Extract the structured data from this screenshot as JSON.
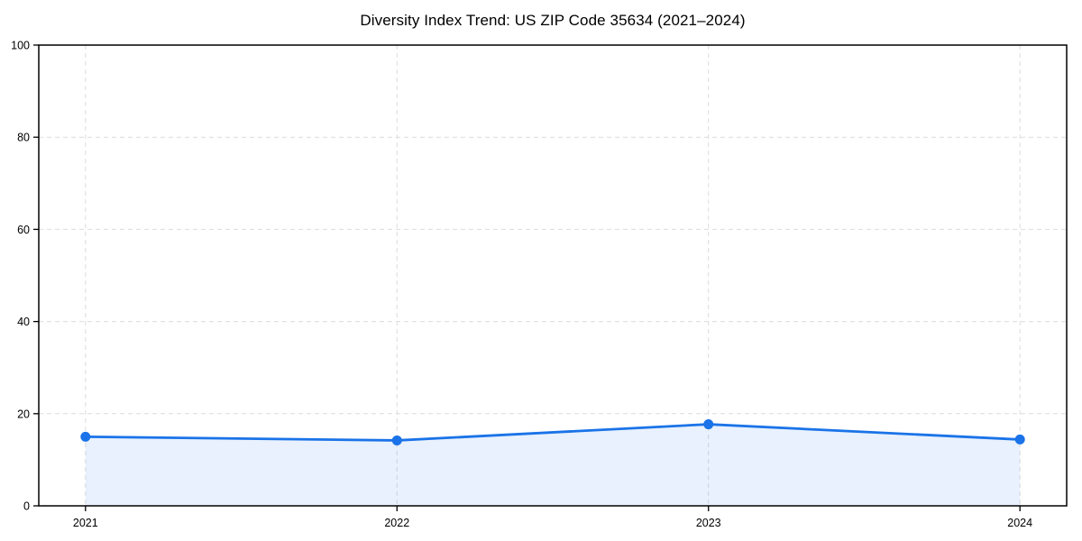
{
  "chart_data": {
    "type": "area",
    "title": "Diversity Index Trend: US ZIP Code 35634 (2021–2024)",
    "categories": [
      "2021",
      "2022",
      "2023",
      "2024"
    ],
    "series": [
      {
        "name": "Diversity Index",
        "values": [
          15.0,
          14.2,
          17.7,
          14.4
        ]
      }
    ],
    "xlabel": "",
    "ylabel": "",
    "ylim": [
      0,
      100
    ],
    "yticks": [
      0,
      20,
      40,
      60,
      80,
      100
    ],
    "grid": "on",
    "grid_style": "dashed",
    "legend": "none",
    "marker": "circle",
    "colors": {
      "line": "#1a73e8",
      "marker": "#1a73e8",
      "fill": "#1a73e8",
      "fill_opacity": 0.1,
      "grid": "#dcdcdc",
      "axis": "#000000",
      "text": "#000000",
      "background": "#ffffff"
    }
  }
}
